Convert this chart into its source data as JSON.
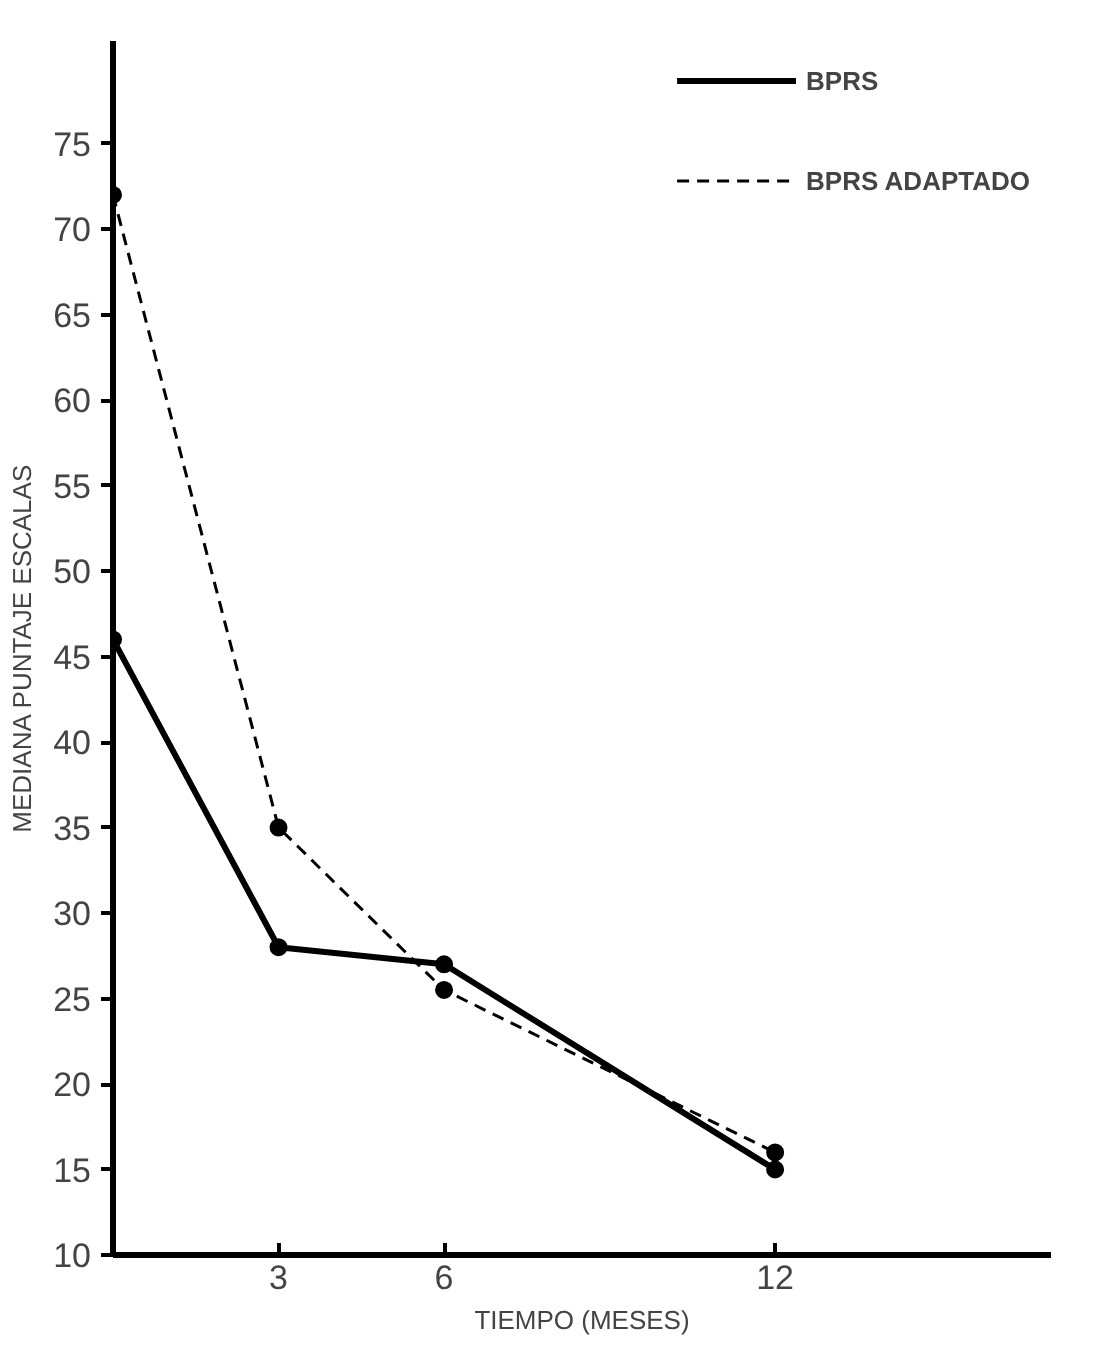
{
  "chart_data": {
    "type": "line",
    "xlabel": "TIEMPO (MESES)",
    "ylabel": "MEDIANA PUNTAJE ESCALAS",
    "x": [
      0,
      3,
      6,
      12
    ],
    "xlim": [
      0,
      17
    ],
    "xticks": [
      3,
      6,
      12
    ],
    "ylim": [
      10,
      81
    ],
    "yticks": [
      10,
      15,
      20,
      25,
      30,
      35,
      40,
      45,
      50,
      55,
      60,
      65,
      70,
      75
    ],
    "series": [
      {
        "name": "BPRS",
        "color": "#000000",
        "values": [
          46,
          28,
          27,
          15
        ],
        "line_style": "solid"
      },
      {
        "name": "BPRS ADAPTADO",
        "color": "#000000",
        "values": [
          72,
          35,
          25.5,
          16
        ],
        "line_style": "dashed"
      }
    ],
    "marker": "circle",
    "grid": false,
    "legend": "top right"
  }
}
